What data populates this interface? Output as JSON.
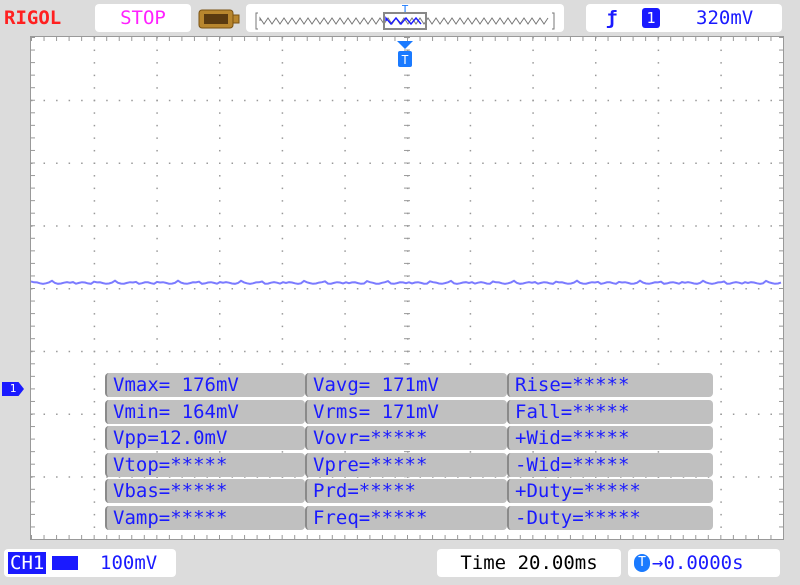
{
  "header": {
    "brand": "RIGOL",
    "run_state": "STOP",
    "trigger_edge_icon": "rising-edge-icon",
    "trigger_source": "1",
    "trigger_level": "320mV",
    "memory_icon": "memory-depth-icon",
    "trigger_position_label": "T"
  },
  "colors": {
    "brand": "#ff2020",
    "run_state": "#ff20ff",
    "channel1": "#1a1aff",
    "trace": "#7b7bff",
    "measure_bg": "#c0c0c0"
  },
  "screen": {
    "trigger_marker": "T",
    "ch1_marker": "1"
  },
  "measurements": [
    [
      "Vmax= 176mV",
      "Vavg= 171mV",
      "Rise=*****"
    ],
    [
      "Vmin= 164mV",
      "Vrms= 171mV",
      "Fall=*****"
    ],
    [
      "Vpp=12.0mV",
      "Vovr=*****",
      "+Wid=*****"
    ],
    [
      "Vtop=*****",
      "Vpre=*****",
      "-Wid=*****"
    ],
    [
      "Vbas=*****",
      "Prd=*****",
      "+Duty=*****"
    ],
    [
      "Vamp=*****",
      "Freq=*****",
      "-Duty=*****"
    ]
  ],
  "footer": {
    "channel_label": "CH1",
    "volts_per_div": "100mV",
    "timebase_label": "Time",
    "timebase": "20.00ms",
    "trigger_offset_label": "T",
    "trigger_offset": "→0.0000s"
  }
}
